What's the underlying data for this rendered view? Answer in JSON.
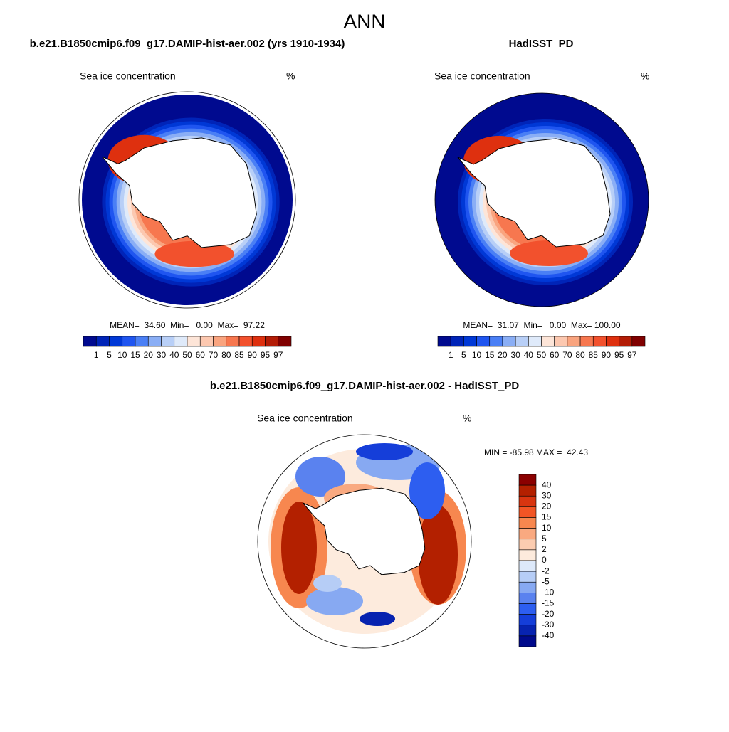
{
  "title": "ANN",
  "panels": [
    {
      "title": "b.e21.B1850cmip6.f09_g17.DAMIP-hist-aer.002 (yrs 1910-1934)",
      "variable": "Sea ice concentration",
      "units": "%",
      "stats": "MEAN=  34.60  Min=   0.00  Max=  97.22"
    },
    {
      "title": "HadISST_PD",
      "variable": "Sea ice concentration",
      "units": "%",
      "stats": "MEAN=  31.07  Min=   0.00  Max= 100.00"
    }
  ],
  "colorbar": {
    "labels": [
      1,
      5,
      10,
      15,
      20,
      30,
      40,
      50,
      60,
      70,
      80,
      85,
      90,
      95,
      97
    ],
    "colors": [
      "#000a8f",
      "#0024b8",
      "#0038d6",
      "#1f55f0",
      "#4a7ff5",
      "#8aaef5",
      "#b8cff7",
      "#dfeafa",
      "#fde5d8",
      "#fcc8b0",
      "#f9a47f",
      "#f7774f",
      "#f2512d",
      "#de300f",
      "#b31c06",
      "#800000"
    ]
  },
  "difference": {
    "title": "b.e21.B1850cmip6.f09_g17.DAMIP-hist-aer.002 - HadISST_PD",
    "variable": "Sea ice concentration",
    "units": "%",
    "stats": "MIN = -85.98 MAX =  42.43",
    "colorbar": {
      "labels": [
        40,
        30,
        20,
        15,
        10,
        5,
        2,
        0,
        -2,
        -5,
        -10,
        -15,
        -20,
        -30,
        -40
      ],
      "colors": [
        "#8b0000",
        "#b32000",
        "#d83510",
        "#f25525",
        "#f7874f",
        "#f9a980",
        "#fbccb0",
        "#fdebdd",
        "#dde9fa",
        "#b6cdf6",
        "#87a9f2",
        "#5a82ef",
        "#2d5ef0",
        "#153ed9",
        "#0723b0",
        "#000a8c"
      ]
    }
  }
}
